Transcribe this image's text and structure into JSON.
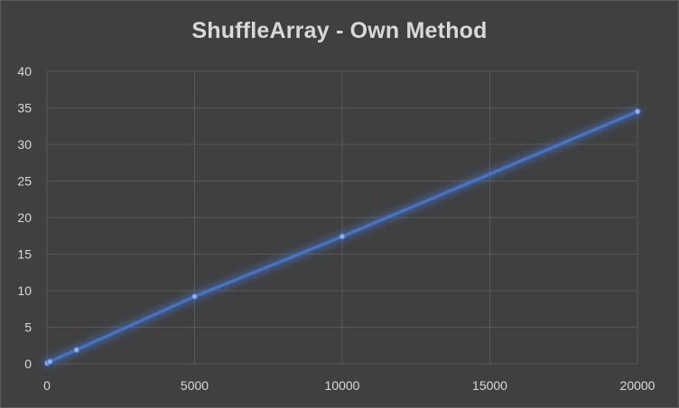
{
  "chart_data": {
    "type": "scatter",
    "title": "ShuffleArray - Own Method",
    "xlabel": "",
    "ylabel": "",
    "xlim": [
      0,
      20000
    ],
    "ylim": [
      0,
      40
    ],
    "xticks": [
      0,
      5000,
      10000,
      15000,
      20000
    ],
    "yticks": [
      0,
      5,
      10,
      15,
      20,
      25,
      30,
      35,
      40
    ],
    "grid": true,
    "legend": "none",
    "series": [
      {
        "color": "#4472c4",
        "lines": true,
        "markers": true,
        "points": [
          {
            "x": 10,
            "y": 0.1
          },
          {
            "x": 100,
            "y": 0.3
          },
          {
            "x": 1000,
            "y": 1.9
          },
          {
            "x": 5000,
            "y": 9.2
          },
          {
            "x": 10000,
            "y": 17.4
          },
          {
            "x": 20000,
            "y": 34.5
          }
        ]
      }
    ]
  }
}
